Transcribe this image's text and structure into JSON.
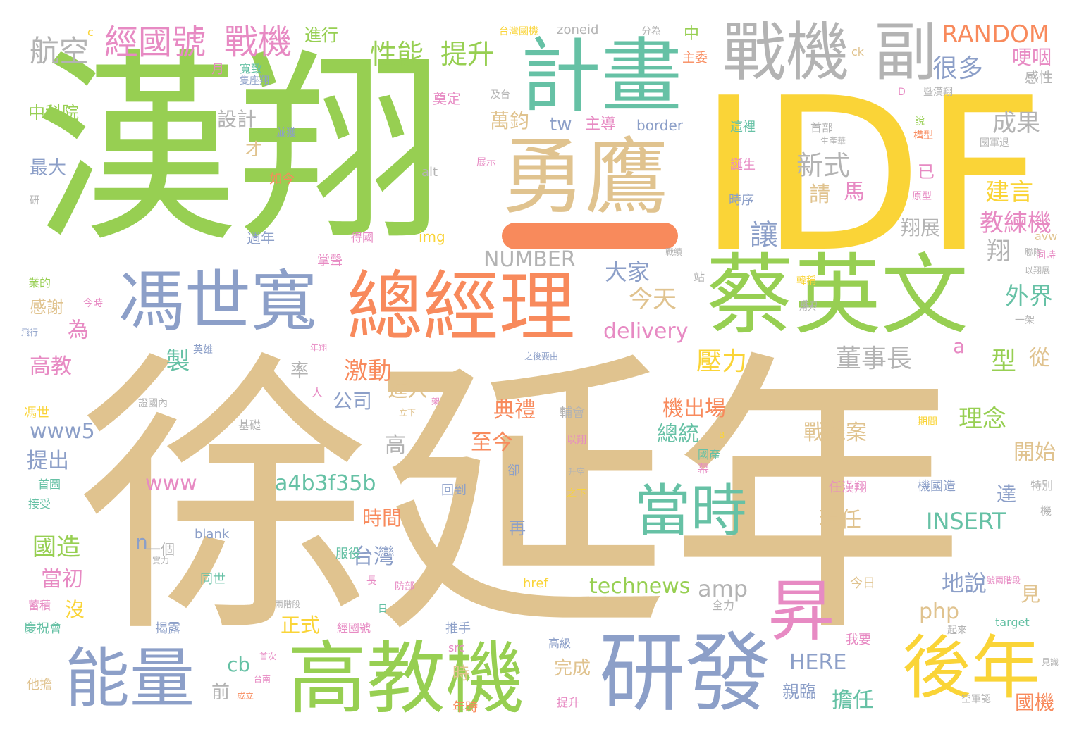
{
  "palette": {
    "green": "#97cf52",
    "tan": "#e0c38f",
    "yellow": "#fad437",
    "orange": "#f88a5c",
    "blue": "#8c9fc8",
    "teal": "#66c1a5",
    "pink": "#e78ac3",
    "gray": "#b3b3b3",
    "background": "#ffffff"
  },
  "words": [
    "漢翔",
    "IDF",
    "徐延年",
    "勇鷹",
    "計畫",
    "戰機",
    "副",
    "總經理",
    "馮世寬",
    "蔡英文",
    "當時",
    "能量",
    "高教機",
    "研發",
    "後年",
    "昇",
    "經國號",
    "戰機",
    "航空",
    "性能",
    "提升",
    "RANDOM",
    "很多",
    "哽咽",
    "感性",
    "設計",
    "中科院",
    "萬鈞",
    "tw",
    "主導",
    "border",
    "成果",
    "新式",
    "建言",
    "教練機",
    "翔展",
    "讓",
    "請",
    "馬",
    "已",
    "翔",
    "NUMBER",
    "大家",
    "今天",
    "delivery",
    "外界",
    "董事長",
    "a",
    "型",
    "從",
    "壓力",
    "激動",
    "公司",
    "進入",
    "理念",
    "典禮",
    "機出場",
    "總統",
    "開始",
    "戰機案",
    "www5",
    "提出",
    "高",
    "至今",
    "www",
    "a4b3f35b",
    "INSERT",
    "時間",
    "現任",
    "達",
    "國造",
    "當初",
    "台灣",
    "amp",
    "technews",
    "地說",
    "見",
    "php",
    "n",
    "一個",
    "再",
    "沒",
    "正式",
    "HERE",
    "擔任",
    "國機",
    "親臨",
    "cb",
    "完成",
    "前",
    "時",
    "製",
    "為",
    "高教",
    "最大",
    "率",
    "感謝",
    "才",
    "月",
    "寬致",
    "進行",
    "中",
    "主委",
    "zoneid",
    "台灣國機",
    "分為",
    "ck",
    "及台",
    "奠定",
    "展示",
    "D",
    "暨漢翔",
    "說",
    "構型",
    "這裡",
    "首部",
    "生產華",
    "國軍退",
    "誕生",
    "原型",
    "時序",
    "avw",
    "聯隊",
    "同時",
    "以翔展",
    "韓稱",
    "戰績",
    "站",
    "用大",
    "img",
    "週年",
    "得國",
    "掌聲",
    "業的",
    "今時",
    "飛行",
    "英雄",
    "年翔",
    "之後要由",
    "證國內",
    "人",
    "基礎",
    "架",
    "立下",
    "期間",
    "以翔",
    "國產",
    "B",
    "幕",
    "卻",
    "升空",
    "首圖",
    "接受",
    "之下",
    "回到",
    "機國造",
    "特別",
    "任漢翔",
    "機",
    "blank",
    "實力",
    "長",
    "防部",
    "同世",
    "兩階段",
    "日",
    "服役",
    "全力",
    "今日",
    "號兩階段",
    "蓄積",
    "慶祝會",
    "推手",
    "經國號",
    "揭露",
    "href",
    "target",
    "起來",
    "我要",
    "src",
    "高級",
    "首次",
    "他擔",
    "台南",
    "成立",
    "年時",
    "提升",
    "空軍認",
    "見識",
    "alt",
    "如今",
    "研",
    "輔會",
    "c",
    "並獲",
    "隻座翔",
    "馮世",
    "一架",
    "戲力"
  ]
}
